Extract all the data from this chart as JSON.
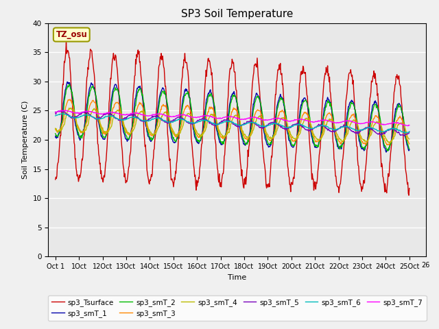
{
  "title": "SP3 Soil Temperature",
  "xlabel": "Time",
  "ylabel": "Soil Temperature (C)",
  "ylim": [
    0,
    40
  ],
  "yticks": [
    0,
    5,
    10,
    15,
    20,
    25,
    30,
    35,
    40
  ],
  "annotation": "TZ_osu",
  "plot_bg_color": "#e8e8e8",
  "fig_bg_color": "#f0f0f0",
  "series_colors": {
    "sp3_Tsurface": "#cc0000",
    "sp3_smT_1": "#0000aa",
    "sp3_smT_2": "#00bb00",
    "sp3_smT_3": "#ff8800",
    "sp3_smT_4": "#bbbb00",
    "sp3_smT_5": "#7700bb",
    "sp3_smT_6": "#00bbbb",
    "sp3_smT_7": "#ff00ff"
  },
  "xtick_labels": [
    "Oct 1",
    "1Oct",
    "12Oct",
    "13Oct",
    "14Oct",
    "15Oct",
    "16Oct",
    "17Oct",
    "18Oct",
    "19Oct",
    "20Oct",
    "21Oct",
    "22Oct",
    "23Oct",
    "24Oct",
    "25Oct",
    "26"
  ],
  "n_days": 15,
  "samples_per_day": 48,
  "legend_ncol": 6
}
